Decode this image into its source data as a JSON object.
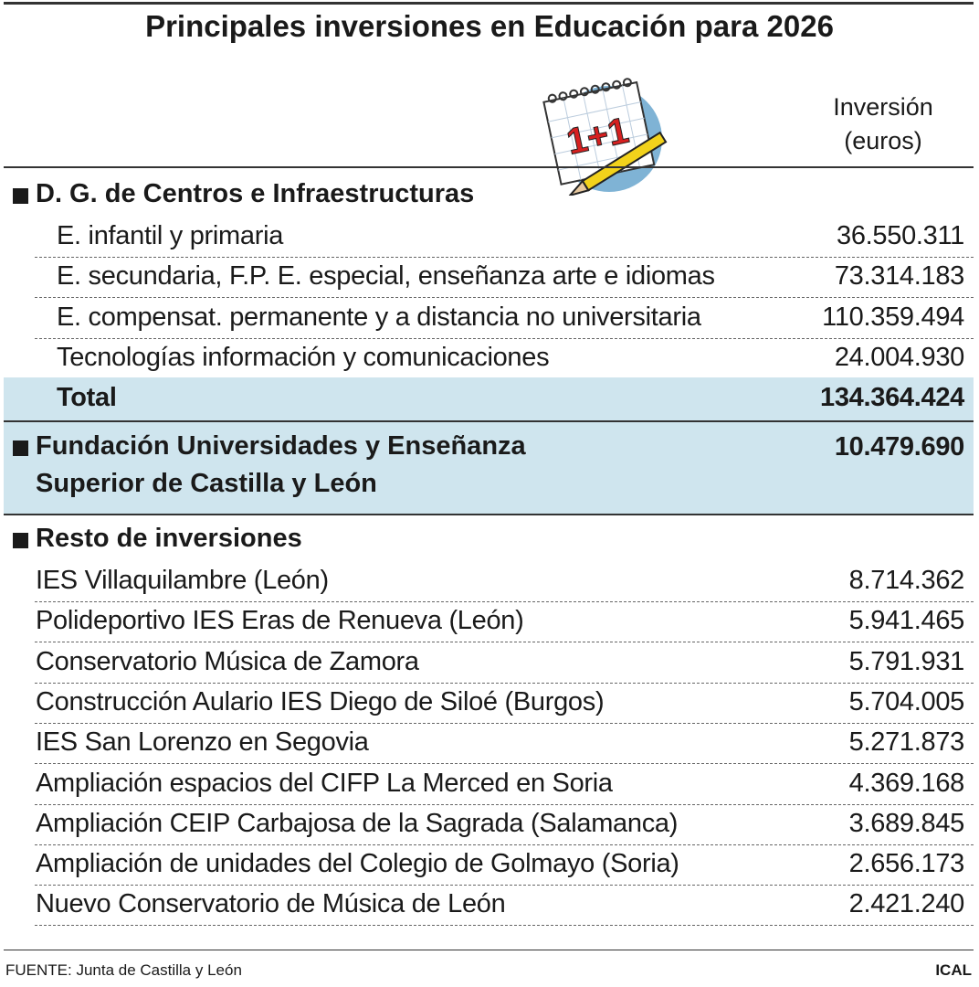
{
  "title": "Principales inversiones en Educación para 2026",
  "header": {
    "column_lines": [
      "Inversión",
      "(euros)"
    ],
    "icon_text": "1+1"
  },
  "sections": [
    {
      "name_lines": [
        "D. G. de Centros e Infraestructuras"
      ],
      "rows": [
        [
          "E. infantil y primaria",
          "36.550.311"
        ],
        [
          "E. secundaria, F.P. E. especial, enseñanza arte e idiomas",
          "73.314.183"
        ],
        [
          "E. compensat. permanente y a distancia no universitaria",
          "110.359.494"
        ],
        [
          "Tecnologías información y comunicaciones",
          "24.004.930"
        ]
      ],
      "total": {
        "label": "Total",
        "value": "134.364.424"
      }
    },
    {
      "name_lines": [
        "Fundación Universidades y Enseñanza",
        "Superior de Castilla y León"
      ],
      "value": "10.479.690"
    },
    {
      "name_lines": [
        "Resto de inversiones"
      ],
      "rows": [
        [
          "IES Villaquilambre (León)",
          "8.714.362"
        ],
        [
          "Polideportivo IES Eras de Renueva (León)",
          "5.941.465"
        ],
        [
          "Conservatorio Música de Zamora",
          "5.791.931"
        ],
        [
          "Construcción Aulario IES Diego de Siloé (Burgos)",
          "5.704.005"
        ],
        [
          "IES San Lorenzo en Segovia",
          "5.271.873"
        ],
        [
          "Ampliación espacios del CIFP La Merced en Soria",
          "4.369.168"
        ],
        [
          "Ampliación CEIP Carbajosa de la Sagrada (Salamanca)",
          "3.689.845"
        ],
        [
          "Ampliación de unidades del Colegio de Golmayo (Soria)",
          "2.656.173"
        ],
        [
          "Nuevo Conservatorio de Música de León",
          "2.421.240"
        ]
      ]
    }
  ],
  "footer": {
    "source": "FUENTE: Junta de Castilla y León",
    "credit": "ICAL"
  }
}
